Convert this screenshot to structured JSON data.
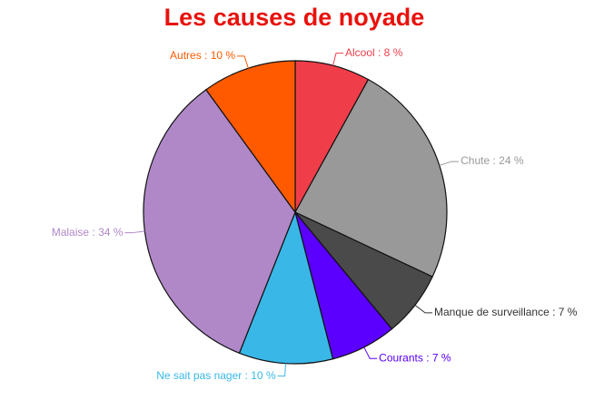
{
  "chart_data": {
    "type": "pie",
    "title": "Les causes de noyade",
    "values": [
      8,
      24,
      7,
      7,
      10,
      34,
      10
    ],
    "value_labels": [
      "Alcool : 8 %",
      "Chute : 24 %",
      "Manque de surveillance : 7 %",
      "Courants : 7 %",
      "Ne sait pas nager : 10 %",
      "Malaise : 34 %",
      "Autres : 10 %"
    ],
    "colors": [
      "#ef3e4a",
      "#999999",
      "#4a4a4a",
      "#5b00ff",
      "#39b8e8",
      "#b088c8",
      "#ff5a00"
    ]
  }
}
